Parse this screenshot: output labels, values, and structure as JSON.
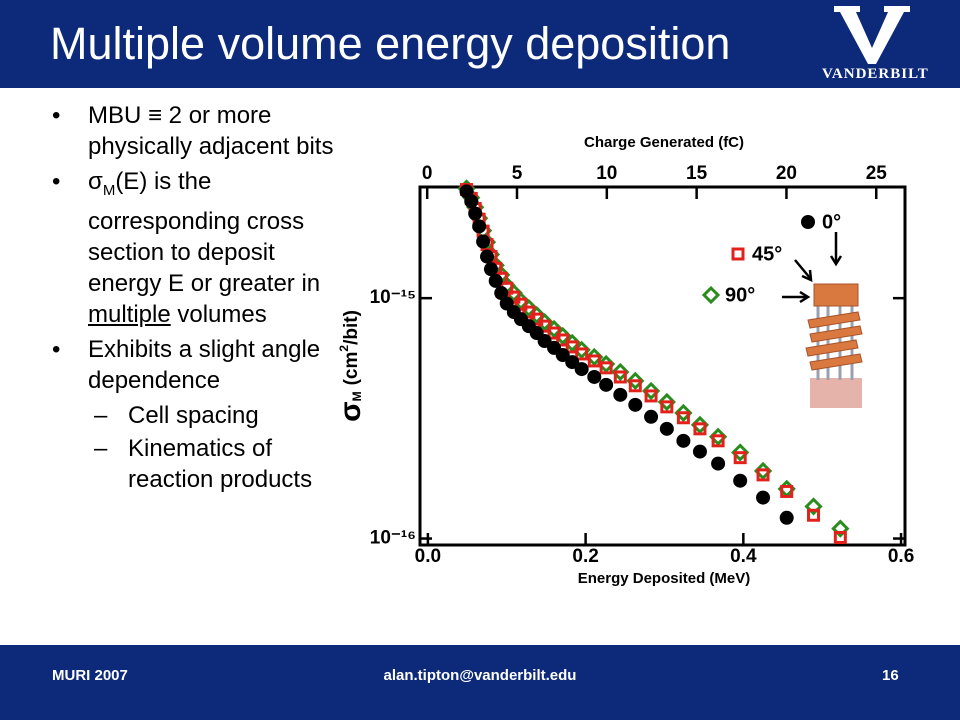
{
  "header": {
    "title": "Multiple volume energy deposition",
    "logo_text": "VANDERBILT"
  },
  "bullets": {
    "first": "MBU ≡ 2 or more physically adjacent bits",
    "second": {
      "symbol": "σ",
      "sub": "M",
      "text": "(E) is the corresponding cross section to deposit energy E or greater in",
      "underlined": "multiple",
      "tail": "volumes"
    },
    "third": "Exhibits a slight angle dependence",
    "sub_items": [
      "Cell spacing",
      "Kinematics of reaction products"
    ]
  },
  "footer": {
    "left": "MURI 2007",
    "center": "alan.tipton@vanderbilt.edu",
    "right": "16"
  },
  "chart_data": {
    "type": "scatter",
    "x_label": "Energy Deposited (MeV)",
    "x2_label": "Charge Generated (fC)",
    "y_label": {
      "symbol": "σ",
      "sub": "M",
      "unit": "(cm",
      "sup": "2",
      "unit_end": "/bit)"
    },
    "xlim": [
      -0.01,
      0.605
    ],
    "xticks": [
      {
        "value": 0,
        "label": "0.0"
      },
      0.2,
      0.4,
      0.6
    ],
    "x2lim": [
      -0.4,
      26.6
    ],
    "x2ticks": [
      0,
      5,
      10,
      15,
      20,
      25
    ],
    "ylim": [
      9.4e-17,
      2.9e-15
    ],
    "yticks": [
      {
        "value": 1e-16,
        "label": "10⁻¹⁶"
      },
      {
        "value": 1e-15,
        "label": "10⁻¹⁵"
      }
    ],
    "log_y": true,
    "legend": "upper right",
    "series": [
      {
        "name": "0°",
        "color": "#000000",
        "marker": "circle",
        "x": [
          0.049,
          0.055,
          0.06,
          0.065,
          0.07,
          0.075,
          0.08,
          0.086,
          0.093,
          0.1,
          0.109,
          0.118,
          0.128,
          0.138,
          0.148,
          0.16,
          0.171,
          0.183,
          0.195,
          0.211,
          0.226,
          0.244,
          0.263,
          0.283,
          0.303,
          0.324,
          0.345,
          0.368,
          0.396,
          0.425,
          0.455
        ],
        "values": [
          2.78e-15,
          2.53e-15,
          2.25e-15,
          1.99e-15,
          1.72e-15,
          1.49e-15,
          1.32e-15,
          1.18e-15,
          1.05e-15,
          9.5e-16,
          8.75e-16,
          8.18e-16,
          7.65e-16,
          7.16e-16,
          6.63e-16,
          6.21e-16,
          5.8e-16,
          5.42e-16,
          5.07e-16,
          4.7e-16,
          4.36e-16,
          3.96e-16,
          3.6e-16,
          3.21e-16,
          2.86e-16,
          2.55e-16,
          2.3e-16,
          2.05e-16,
          1.74e-16,
          1.48e-16,
          1.22e-16
        ]
      },
      {
        "name": "45°",
        "color": "#e3211c",
        "marker": "square",
        "x": [
          0.049,
          0.055,
          0.06,
          0.065,
          0.07,
          0.075,
          0.08,
          0.086,
          0.093,
          0.1,
          0.109,
          0.118,
          0.128,
          0.138,
          0.148,
          0.16,
          0.171,
          0.183,
          0.195,
          0.211,
          0.226,
          0.244,
          0.263,
          0.283,
          0.303,
          0.324,
          0.345,
          0.368,
          0.396,
          0.425,
          0.455,
          0.489,
          0.523
        ],
        "values": [
          2.83e-15,
          2.6e-15,
          2.36e-15,
          2.13e-15,
          1.9e-15,
          1.67e-15,
          1.49e-15,
          1.33e-15,
          1.21e-15,
          1.1e-15,
          1.01e-15,
          9.44e-16,
          8.75e-16,
          8.18e-16,
          7.65e-16,
          7.16e-16,
          6.7e-16,
          6.27e-16,
          5.86e-16,
          5.48e-16,
          5.13e-16,
          4.7e-16,
          4.32e-16,
          3.92e-16,
          3.53e-16,
          3.18e-16,
          2.86e-16,
          2.55e-16,
          2.17e-16,
          1.84e-16,
          1.57e-16,
          1.25e-16,
          1.01e-16
        ]
      },
      {
        "name": "90°",
        "color": "#2a8c1c",
        "marker": "diamond",
        "x": [
          0.049,
          0.055,
          0.06,
          0.065,
          0.07,
          0.075,
          0.08,
          0.086,
          0.093,
          0.1,
          0.109,
          0.118,
          0.128,
          0.138,
          0.148,
          0.16,
          0.171,
          0.183,
          0.195,
          0.211,
          0.226,
          0.244,
          0.263,
          0.283,
          0.303,
          0.324,
          0.345,
          0.368,
          0.396,
          0.425,
          0.455,
          0.489,
          0.523
        ],
        "values": [
          2.86e-15,
          2.62e-15,
          2.39e-15,
          2.15e-15,
          1.91e-15,
          1.71e-15,
          1.52e-15,
          1.37e-15,
          1.25e-15,
          1.13e-15,
          1.05e-15,
          9.72e-16,
          9.09e-16,
          8.5e-16,
          7.95e-16,
          7.44e-16,
          6.96e-16,
          6.51e-16,
          6.09e-16,
          5.69e-16,
          5.32e-16,
          4.93e-16,
          4.53e-16,
          4.11e-16,
          3.7e-16,
          3.33e-16,
          2.97e-16,
          2.65e-16,
          2.28e-16,
          1.91e-16,
          1.61e-16,
          1.36e-16,
          1.1e-16
        ]
      }
    ]
  }
}
